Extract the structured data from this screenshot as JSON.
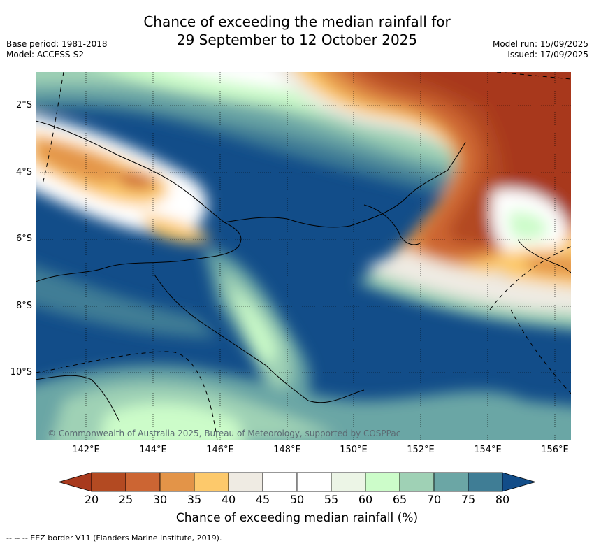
{
  "title": {
    "line1": "Chance of exceeding the median rainfall for",
    "line2": "29 September to 12 October 2025"
  },
  "meta_left": {
    "base_period": "Base period: 1981-2018",
    "model": "Model: ACCESS-S2"
  },
  "meta_right": {
    "model_run": "Model run: 15/09/2025",
    "issued": "Issued: 17/09/2025"
  },
  "map": {
    "lat_ticks": [
      "2°S",
      "4°S",
      "6°S",
      "8°S",
      "10°S"
    ],
    "lon_ticks": [
      "142°E",
      "144°E",
      "146°E",
      "148°E",
      "150°E",
      "152°E",
      "154°E",
      "156°E"
    ],
    "copyright": "© Commonwealth of Australia 2025, Bureau of Meteorology, supported by COSPPac"
  },
  "colorbar": {
    "title": "Chance of exceeding median rainfall (%)",
    "labels": [
      "20",
      "25",
      "30",
      "35",
      "40",
      "45",
      "50",
      "55",
      "60",
      "65",
      "70",
      "75",
      "80"
    ],
    "colors": {
      "under": "#a8391d",
      "bins": [
        "#b34a22",
        "#cc6533",
        "#e39448",
        "#fdc96b",
        "#efebe3",
        "#ffffff",
        "#ffffff",
        "#ecf5e6",
        "#ccfcc9",
        "#9fd1b5",
        "#6ba6a5",
        "#3f7d95"
      ],
      "over": "#124d89"
    }
  },
  "footnote": "--  --  -- EEZ border V11 (Flanders Marine Institute, 2019)."
}
